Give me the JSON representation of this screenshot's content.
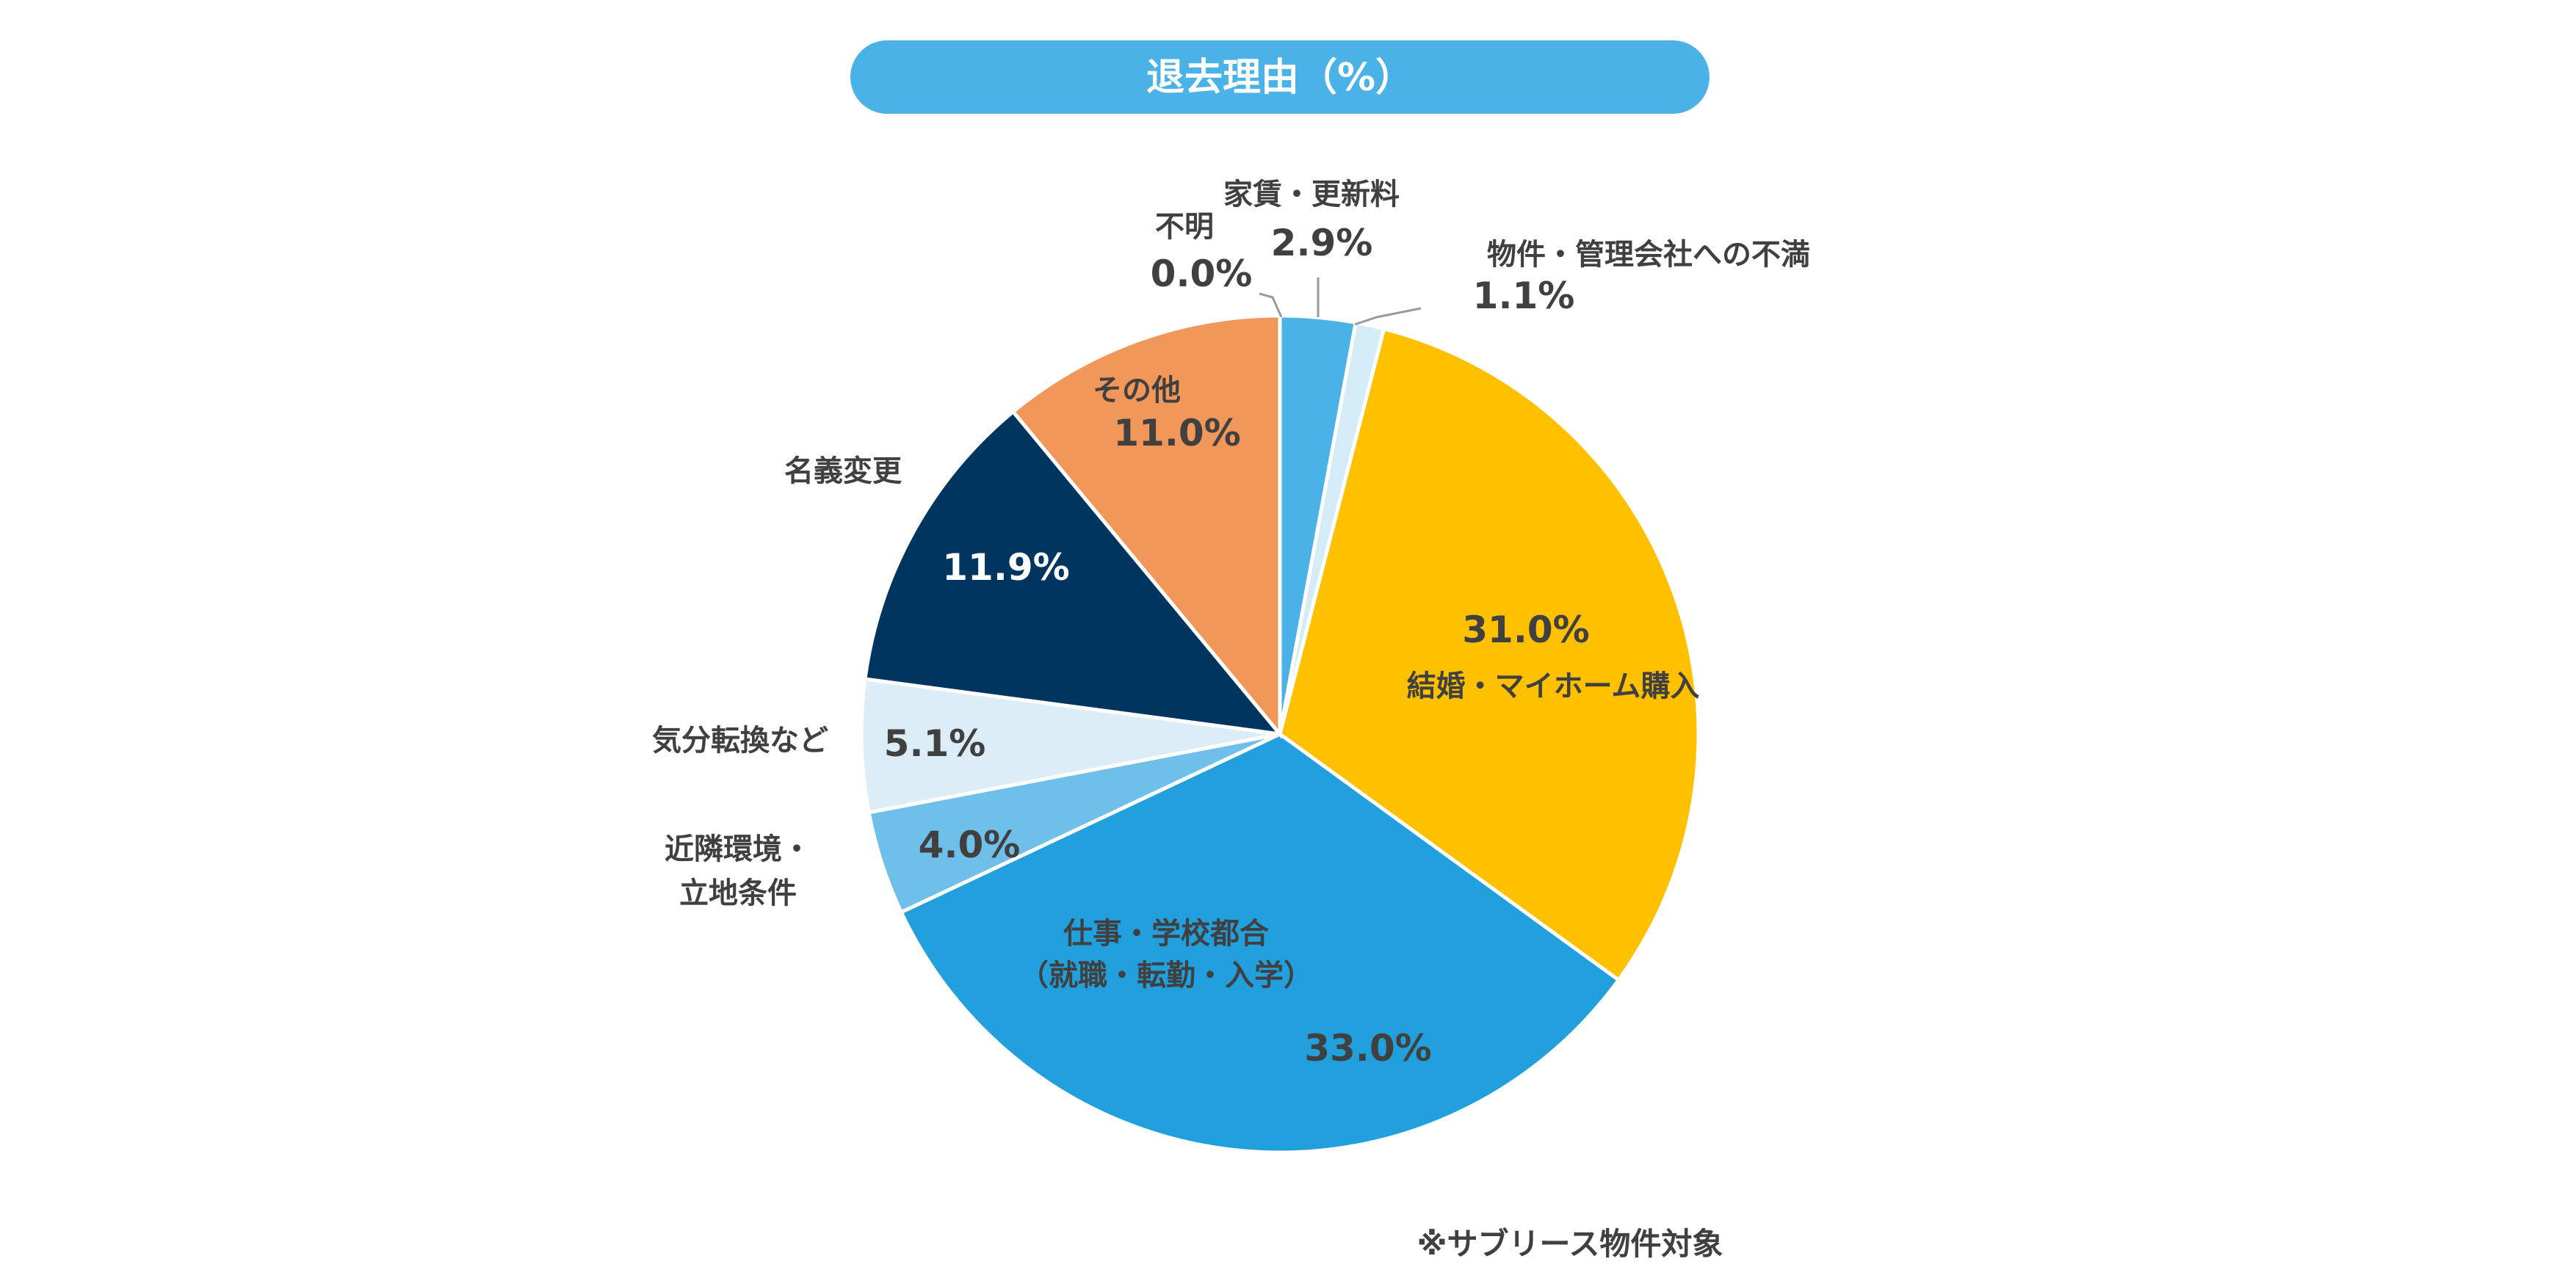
{
  "chart_data": {
    "type": "pie",
    "title": "退去理由（%）",
    "note": "※サブリース物件対象",
    "slices": [
      {
        "label": "家賃・更新料",
        "value": 2.9,
        "value_text": "2.9%",
        "color": "#4ab2e6"
      },
      {
        "label": "物件・管理会社への不満",
        "value": 1.1,
        "value_text": "1.1%",
        "color": "#d4ebf8"
      },
      {
        "label": "結婚・マイホーム購入",
        "value": 31.0,
        "value_text": "31.0%",
        "color": "#ffc000"
      },
      {
        "label_lines": [
          "仕事・学校都合",
          "（就職・転勤・入学）"
        ],
        "value": 33.0,
        "value_text": "33.0%",
        "color": "#22a0de"
      },
      {
        "label_lines": [
          "近隣環境・",
          "立地条件"
        ],
        "value": 4.0,
        "value_text": "4.0%",
        "color": "#6ec0ea"
      },
      {
        "label": "気分転換など",
        "value": 5.1,
        "value_text": "5.1%",
        "color": "#dcedf8"
      },
      {
        "label": "名義変更",
        "value": 11.9,
        "value_text": "11.9%",
        "color": "#003560"
      },
      {
        "label": "その他",
        "value": 11.0,
        "value_text": "11.0%",
        "color": "#f2975a"
      },
      {
        "label": "不明",
        "value": 0.0,
        "value_text": "0.0%",
        "color": "#ffffff"
      }
    ]
  }
}
